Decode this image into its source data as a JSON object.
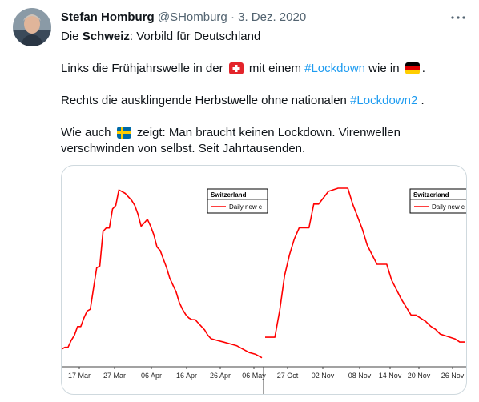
{
  "tweet": {
    "author_name": "Stefan Homburg",
    "author_handle": "@SHomburg",
    "separator": " · ",
    "date": "3. Dez. 2020",
    "line1": {
      "prefix": "Die ",
      "bold": "Schweiz",
      "suffix": ": Vorbild für Deutschland"
    },
    "line2": {
      "t1": "Links die Frühjahrswelle in der ",
      "t2": " mit einem ",
      "hashtag": "#Lockdown",
      "t3": " wie in ",
      "t4": "."
    },
    "line3": {
      "t1": "Rechts die ausklingende Herbstwelle ohne nationalen ",
      "hashtag": "#Lockdown2",
      "t2": " ."
    },
    "line4": {
      "t1": "Wie auch ",
      "t2": " zeigt: Man braucht keinen Lockdown. Virenwellen"
    },
    "line5": "verschwinden von selbst. Seit Jahrtausenden.",
    "flags": {
      "left_flag_icon": "swiss-flag-icon",
      "second_flag_icon": "german-flag-icon",
      "third_flag_icon": "swedish-flag-icon"
    },
    "more_icon": "more-dots-icon"
  },
  "colors": {
    "series_line": "#ff0000",
    "link": "#1d9bf0"
  },
  "chart_data": [
    {
      "type": "line",
      "legend_title": "Switzerland",
      "legend_label": "Daily new c",
      "legend_position": "top-right",
      "x_ticks": [
        "17 Mar",
        "27 Mar",
        "06 Apr",
        "16 Apr",
        "26 Apr",
        "06 May"
      ],
      "series": [
        {
          "name": "Daily new c",
          "x": [
            "2020-03-07",
            "2020-03-08",
            "2020-03-09",
            "2020-03-10",
            "2020-03-11",
            "2020-03-12",
            "2020-03-13",
            "2020-03-14",
            "2020-03-15",
            "2020-03-16",
            "2020-03-17",
            "2020-03-18",
            "2020-03-19",
            "2020-03-20",
            "2020-03-21",
            "2020-03-22",
            "2020-03-23",
            "2020-03-24",
            "2020-03-25",
            "2020-03-26",
            "2020-03-27",
            "2020-03-28",
            "2020-03-29",
            "2020-03-30",
            "2020-03-31",
            "2020-04-01",
            "2020-04-02",
            "2020-04-03",
            "2020-04-04",
            "2020-04-05",
            "2020-04-06",
            "2020-04-07",
            "2020-04-08",
            "2020-04-09",
            "2020-04-10",
            "2020-04-11",
            "2020-04-12",
            "2020-04-13",
            "2020-04-14",
            "2020-04-15",
            "2020-04-16",
            "2020-04-17",
            "2020-04-18",
            "2020-04-19",
            "2020-04-20",
            "2020-04-21",
            "2020-04-22",
            "2020-04-23",
            "2020-04-25",
            "2020-04-27",
            "2020-04-29",
            "2020-05-01",
            "2020-05-03",
            "2020-05-05",
            "2020-05-07",
            "2020-05-09"
          ],
          "y": [
            0.07,
            0.08,
            0.08,
            0.12,
            0.15,
            0.2,
            0.2,
            0.25,
            0.29,
            0.3,
            0.42,
            0.54,
            0.55,
            0.75,
            0.77,
            0.77,
            0.88,
            0.9,
            0.99,
            0.98,
            0.97,
            0.95,
            0.93,
            0.9,
            0.85,
            0.78,
            0.8,
            0.82,
            0.78,
            0.73,
            0.66,
            0.64,
            0.59,
            0.54,
            0.48,
            0.44,
            0.4,
            0.34,
            0.3,
            0.27,
            0.25,
            0.24,
            0.24,
            0.22,
            0.2,
            0.18,
            0.15,
            0.13,
            0.12,
            0.11,
            0.1,
            0.09,
            0.07,
            0.05,
            0.04,
            0.02
          ]
        }
      ]
    },
    {
      "type": "line",
      "legend_title": "Switzerland",
      "legend_label": "Daily new c",
      "legend_position": "top-right",
      "x_ticks": [
        "27 Oct",
        "02 Nov",
        "08 Nov",
        "14 Nov",
        "20 Nov",
        "26 Nov"
      ],
      "series": [
        {
          "name": "Daily new c",
          "x": [
            "2020-10-20",
            "2020-10-21",
            "2020-10-22",
            "2020-10-23",
            "2020-10-24",
            "2020-10-25",
            "2020-10-26",
            "2020-10-27",
            "2020-10-28",
            "2020-10-29",
            "2020-10-30",
            "2020-10-31",
            "2020-11-01",
            "2020-11-02",
            "2020-11-03",
            "2020-11-04",
            "2020-11-05",
            "2020-11-06",
            "2020-11-07",
            "2020-11-08",
            "2020-11-09",
            "2020-11-10",
            "2020-11-11",
            "2020-11-12",
            "2020-11-13",
            "2020-11-14",
            "2020-11-15",
            "2020-11-16",
            "2020-11-17",
            "2020-11-18",
            "2020-11-19",
            "2020-11-20",
            "2020-11-21",
            "2020-11-22",
            "2020-11-23",
            "2020-11-24",
            "2020-11-25",
            "2020-11-26",
            "2020-11-27",
            "2020-11-28",
            "2020-11-29",
            "2020-11-30"
          ],
          "y": [
            0.06,
            0.06,
            0.06,
            0.23,
            0.45,
            0.58,
            0.68,
            0.75,
            0.75,
            0.75,
            0.9,
            0.9,
            0.94,
            0.98,
            0.99,
            1.0,
            1.0,
            1.0,
            0.9,
            0.82,
            0.74,
            0.64,
            0.58,
            0.52,
            0.52,
            0.52,
            0.42,
            0.36,
            0.3,
            0.25,
            0.2,
            0.2,
            0.18,
            0.16,
            0.13,
            0.11,
            0.08,
            0.07,
            0.06,
            0.05,
            0.03,
            0.03
          ]
        }
      ]
    }
  ]
}
